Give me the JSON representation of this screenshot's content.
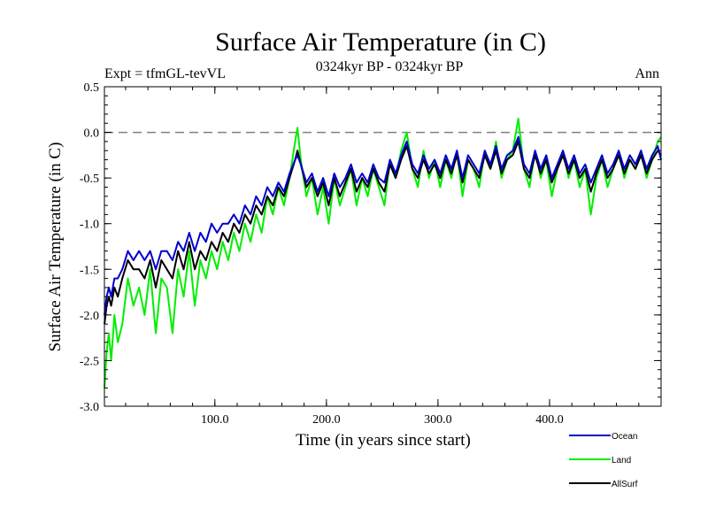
{
  "chart_data": {
    "type": "line",
    "title": "Surface Air Temperature (in C)",
    "subtitle": "0324kyr BP - 0324kyr BP",
    "left_note": "Expt = tfmGL-tevVL",
    "right_note": "Ann",
    "xlabel": "Time (in years since start)",
    "ylabel": "Surface Air Temperature (in C)",
    "xlim": [
      1,
      500
    ],
    "ylim": [
      -3.0,
      0.5
    ],
    "xticks": [
      100,
      200,
      300,
      400
    ],
    "xtick_labels": [
      "100.0",
      "200.0",
      "300.0",
      "400.0"
    ],
    "yticks": [
      -3.0,
      -2.5,
      -2.0,
      -1.5,
      -1.0,
      -0.5,
      0.0,
      0.5
    ],
    "ytick_labels": [
      "-3.0",
      "-2.5",
      "-2.0",
      "-1.5",
      "-1.0",
      "-0.5",
      "0.0",
      "0.5"
    ],
    "reference_line": {
      "y": 0.0,
      "style": "dashed",
      "color": "#808080"
    },
    "grid": false,
    "legend_position": "bottom-right",
    "series": [
      {
        "name": "Land",
        "color": "#00ee00",
        "x": [
          1,
          3,
          5,
          7,
          10,
          13,
          17,
          22,
          27,
          32,
          37,
          42,
          47,
          52,
          57,
          62,
          67,
          72,
          77,
          82,
          87,
          92,
          97,
          102,
          107,
          112,
          117,
          122,
          127,
          132,
          137,
          142,
          147,
          152,
          157,
          162,
          167,
          172,
          174,
          177,
          182,
          187,
          192,
          197,
          202,
          207,
          212,
          217,
          222,
          227,
          232,
          237,
          242,
          247,
          252,
          257,
          262,
          267,
          272,
          277,
          282,
          287,
          292,
          297,
          302,
          307,
          312,
          317,
          322,
          327,
          332,
          337,
          342,
          347,
          352,
          357,
          362,
          367,
          372,
          377,
          382,
          387,
          392,
          397,
          402,
          407,
          412,
          417,
          422,
          427,
          432,
          437,
          442,
          447,
          452,
          457,
          462,
          467,
          472,
          477,
          482,
          487,
          492,
          497,
          500
        ],
        "y": [
          -2.8,
          -2.4,
          -2.2,
          -2.5,
          -2.0,
          -2.3,
          -2.1,
          -1.6,
          -1.9,
          -1.7,
          -2.0,
          -1.5,
          -2.2,
          -1.6,
          -1.7,
          -2.2,
          -1.5,
          -1.8,
          -1.3,
          -1.9,
          -1.4,
          -1.6,
          -1.3,
          -1.5,
          -1.2,
          -1.4,
          -1.1,
          -1.3,
          -1.0,
          -1.2,
          -0.9,
          -1.1,
          -0.7,
          -0.9,
          -0.6,
          -0.8,
          -0.5,
          -0.1,
          0.05,
          -0.3,
          -0.7,
          -0.5,
          -0.9,
          -0.6,
          -1.0,
          -0.5,
          -0.8,
          -0.6,
          -0.4,
          -0.8,
          -0.5,
          -0.7,
          -0.4,
          -0.6,
          -0.8,
          -0.3,
          -0.5,
          -0.2,
          0.0,
          -0.4,
          -0.6,
          -0.2,
          -0.5,
          -0.3,
          -0.6,
          -0.3,
          -0.5,
          -0.2,
          -0.7,
          -0.3,
          -0.4,
          -0.6,
          -0.2,
          -0.4,
          -0.1,
          -0.5,
          -0.3,
          -0.2,
          0.15,
          -0.4,
          -0.6,
          -0.2,
          -0.5,
          -0.3,
          -0.7,
          -0.4,
          -0.2,
          -0.5,
          -0.3,
          -0.6,
          -0.4,
          -0.9,
          -0.5,
          -0.3,
          -0.6,
          -0.4,
          -0.2,
          -0.5,
          -0.3,
          -0.4,
          -0.2,
          -0.5,
          -0.3,
          -0.1,
          -0.05
        ]
      },
      {
        "name": "AllSurf",
        "color": "#000000",
        "x": [
          1,
          3,
          5,
          7,
          10,
          13,
          17,
          22,
          27,
          32,
          37,
          42,
          47,
          52,
          57,
          62,
          67,
          72,
          77,
          82,
          87,
          92,
          97,
          102,
          107,
          112,
          117,
          122,
          127,
          132,
          137,
          142,
          147,
          152,
          157,
          162,
          167,
          172,
          174,
          177,
          182,
          187,
          192,
          197,
          202,
          207,
          212,
          217,
          222,
          227,
          232,
          237,
          242,
          247,
          252,
          257,
          262,
          267,
          272,
          277,
          282,
          287,
          292,
          297,
          302,
          307,
          312,
          317,
          322,
          327,
          332,
          337,
          342,
          347,
          352,
          357,
          362,
          367,
          372,
          377,
          382,
          387,
          392,
          397,
          402,
          407,
          412,
          417,
          422,
          427,
          432,
          437,
          442,
          447,
          452,
          457,
          462,
          467,
          472,
          477,
          482,
          487,
          492,
          497,
          500
        ],
        "y": [
          -2.1,
          -1.9,
          -1.8,
          -1.9,
          -1.7,
          -1.8,
          -1.6,
          -1.4,
          -1.5,
          -1.5,
          -1.6,
          -1.4,
          -1.7,
          -1.4,
          -1.5,
          -1.6,
          -1.3,
          -1.5,
          -1.2,
          -1.5,
          -1.3,
          -1.4,
          -1.2,
          -1.3,
          -1.1,
          -1.2,
          -1.0,
          -1.1,
          -0.9,
          -1.0,
          -0.8,
          -0.9,
          -0.7,
          -0.8,
          -0.6,
          -0.7,
          -0.5,
          -0.3,
          -0.2,
          -0.35,
          -0.6,
          -0.5,
          -0.7,
          -0.55,
          -0.8,
          -0.5,
          -0.7,
          -0.55,
          -0.4,
          -0.65,
          -0.5,
          -0.6,
          -0.4,
          -0.55,
          -0.65,
          -0.35,
          -0.5,
          -0.3,
          -0.15,
          -0.4,
          -0.5,
          -0.3,
          -0.45,
          -0.35,
          -0.5,
          -0.3,
          -0.45,
          -0.25,
          -0.55,
          -0.3,
          -0.4,
          -0.5,
          -0.25,
          -0.4,
          -0.2,
          -0.45,
          -0.3,
          -0.25,
          -0.1,
          -0.4,
          -0.5,
          -0.25,
          -0.45,
          -0.3,
          -0.55,
          -0.4,
          -0.25,
          -0.45,
          -0.3,
          -0.5,
          -0.4,
          -0.65,
          -0.45,
          -0.3,
          -0.5,
          -0.4,
          -0.25,
          -0.45,
          -0.3,
          -0.4,
          -0.25,
          -0.45,
          -0.3,
          -0.2,
          -0.25
        ]
      },
      {
        "name": "Ocean",
        "color": "#0000cc",
        "x": [
          1,
          3,
          5,
          7,
          10,
          13,
          17,
          22,
          27,
          32,
          37,
          42,
          47,
          52,
          57,
          62,
          67,
          72,
          77,
          82,
          87,
          92,
          97,
          102,
          107,
          112,
          117,
          122,
          127,
          132,
          137,
          142,
          147,
          152,
          157,
          162,
          167,
          172,
          174,
          177,
          182,
          187,
          192,
          197,
          202,
          207,
          212,
          217,
          222,
          227,
          232,
          237,
          242,
          247,
          252,
          257,
          262,
          267,
          272,
          277,
          282,
          287,
          292,
          297,
          302,
          307,
          312,
          317,
          322,
          327,
          332,
          337,
          342,
          347,
          352,
          357,
          362,
          367,
          372,
          377,
          382,
          387,
          392,
          397,
          402,
          407,
          412,
          417,
          422,
          427,
          432,
          437,
          442,
          447,
          452,
          457,
          462,
          467,
          472,
          477,
          482,
          487,
          492,
          497,
          500
        ],
        "y": [
          -2.0,
          -1.8,
          -1.7,
          -1.8,
          -1.6,
          -1.6,
          -1.5,
          -1.3,
          -1.4,
          -1.3,
          -1.4,
          -1.3,
          -1.5,
          -1.3,
          -1.3,
          -1.4,
          -1.2,
          -1.3,
          -1.1,
          -1.3,
          -1.1,
          -1.2,
          -1.0,
          -1.1,
          -1.0,
          -1.0,
          -0.9,
          -1.0,
          -0.8,
          -0.9,
          -0.7,
          -0.8,
          -0.6,
          -0.7,
          -0.55,
          -0.65,
          -0.45,
          -0.3,
          -0.25,
          -0.35,
          -0.55,
          -0.45,
          -0.65,
          -0.5,
          -0.7,
          -0.45,
          -0.6,
          -0.5,
          -0.35,
          -0.55,
          -0.45,
          -0.55,
          -0.35,
          -0.5,
          -0.55,
          -0.3,
          -0.45,
          -0.25,
          -0.1,
          -0.35,
          -0.45,
          -0.25,
          -0.4,
          -0.3,
          -0.45,
          -0.25,
          -0.4,
          -0.2,
          -0.5,
          -0.25,
          -0.35,
          -0.45,
          -0.2,
          -0.35,
          -0.15,
          -0.4,
          -0.25,
          -0.2,
          -0.05,
          -0.35,
          -0.45,
          -0.2,
          -0.4,
          -0.25,
          -0.5,
          -0.35,
          -0.2,
          -0.4,
          -0.25,
          -0.45,
          -0.35,
          -0.55,
          -0.4,
          -0.25,
          -0.45,
          -0.35,
          -0.2,
          -0.4,
          -0.25,
          -0.35,
          -0.2,
          -0.4,
          -0.25,
          -0.15,
          -0.3
        ]
      }
    ]
  }
}
